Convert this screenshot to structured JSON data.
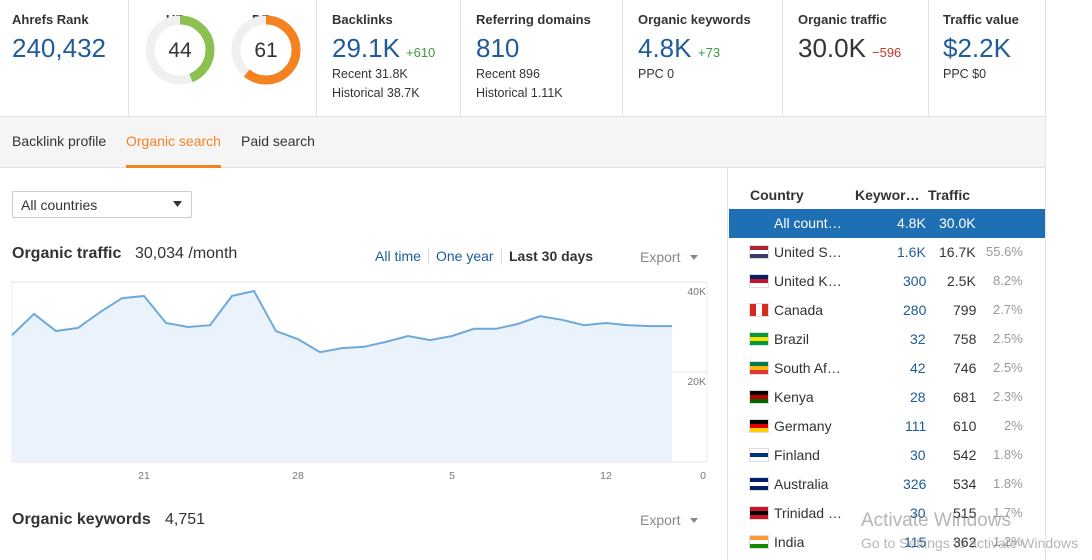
{
  "metrics": [
    {
      "label": "Ahrefs Rank",
      "value": "240,432"
    },
    {
      "label": "UR",
      "value": 44,
      "color": "#8cc152"
    },
    {
      "label": "DR",
      "value": 61,
      "color": "#f58220"
    },
    {
      "label": "Backlinks",
      "value": "29.1K",
      "delta": "+610",
      "details": [
        "Recent 31.8K",
        "Historical 38.7K"
      ]
    },
    {
      "label": "Referring domains",
      "value": "810",
      "details": [
        "Recent 896",
        "Historical 1.11K"
      ]
    },
    {
      "label": "Organic keywords",
      "value": "4.8K",
      "delta": "+73",
      "details": [
        "PPC 0"
      ]
    },
    {
      "label": "Organic traffic",
      "value": "30.0K",
      "delta": "−596"
    },
    {
      "label": "Traffic value",
      "value": "$2.2K",
      "details": [
        "PPC $0"
      ]
    }
  ],
  "tabs": [
    {
      "label": "Backlink profile"
    },
    {
      "label": "Organic search",
      "active": true
    },
    {
      "label": "Paid search"
    }
  ],
  "country_filter": "All countries",
  "traffic_panel": {
    "title": "Organic traffic",
    "summary": "30,034 /month",
    "ranges": [
      {
        "label": "All time"
      },
      {
        "label": "One year"
      },
      {
        "label": "Last 30 days",
        "active": true
      }
    ],
    "export": "Export"
  },
  "chart_data": {
    "type": "area",
    "categories": [
      null,
      null,
      null,
      null,
      null,
      null,
      "21",
      null,
      null,
      null,
      null,
      null,
      null,
      "28",
      null,
      null,
      null,
      null,
      null,
      null,
      "5",
      null,
      null,
      null,
      null,
      null,
      null,
      "12",
      null,
      null,
      null
    ],
    "values": [
      28200,
      32900,
      29100,
      29800,
      33300,
      36400,
      36900,
      30900,
      30000,
      30400,
      36900,
      38000,
      29100,
      27300,
      24400,
      25300,
      25600,
      26700,
      28000,
      27100,
      28000,
      29600,
      29600,
      30700,
      32400,
      31600,
      30400,
      30900,
      30400,
      30200,
      30200
    ],
    "ylim": [
      0,
      40000
    ],
    "yticks": [
      0,
      {
        "value": 20000,
        "label": "20K"
      },
      {
        "value": 40000,
        "label": "40K"
      }
    ],
    "color": "#6fa9d9",
    "fill": "#eaf3fb",
    "grid": true
  },
  "keywords_panel": {
    "title": "Organic keywords",
    "value": "4,751",
    "export": "Export"
  },
  "country_table": {
    "columns": [
      "Country",
      "Keywor…",
      "Traffic"
    ],
    "rows": [
      [
        "All count…",
        "4.8K",
        "30.0K"
      ],
      [
        "United S…",
        "1.6K",
        "16.7K",
        "55.6%"
      ],
      [
        "United K…",
        "300",
        "2.5K",
        "8.2%"
      ],
      [
        "Canada",
        "280",
        "799",
        "2.7%"
      ],
      [
        "Brazil",
        "32",
        "758",
        "2.5%"
      ],
      [
        "South Af…",
        "42",
        "746",
        "2.5%"
      ],
      [
        "Kenya",
        "28",
        "681",
        "2.3%"
      ],
      [
        "Germany",
        "111",
        "610",
        "2%"
      ],
      [
        "Finland",
        "30",
        "542",
        "1.8%"
      ],
      [
        "Australia",
        "326",
        "534",
        "1.8%"
      ],
      [
        "Trinidad …",
        "30",
        "515",
        "1.7%"
      ],
      [
        "India",
        "115",
        "362",
        "1.2%"
      ]
    ]
  },
  "watermark": [
    "Activate Windows",
    "Go to Settings to activate Windows"
  ]
}
